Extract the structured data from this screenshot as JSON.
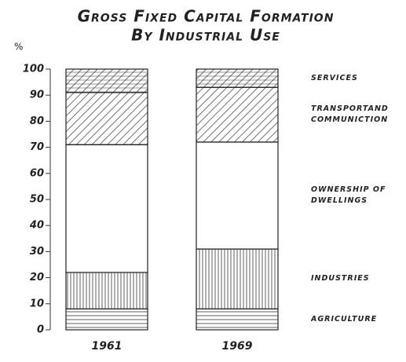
{
  "chart_data": {
    "type": "stacked-bar",
    "title": [
      "Gross Fixed Capital Formation",
      "By Industrial Use"
    ],
    "y_label": "%",
    "categories": [
      "1961",
      "1969"
    ],
    "series": [
      {
        "name": "AGRICULTURE",
        "color": "#222",
        "pattern": "horizontal",
        "values": [
          8,
          8
        ]
      },
      {
        "name": "INDUSTRIES",
        "color": "#222",
        "pattern": "vertical",
        "values": [
          14,
          23
        ]
      },
      {
        "name": "OWNERSHIP OF DWELLINGS",
        "color": "#222",
        "pattern": "none",
        "values": [
          49,
          41
        ]
      },
      {
        "name": "TRANSPORTAND COMMUNICTION",
        "color": "#222",
        "pattern": "diagonal",
        "values": [
          20,
          21
        ]
      },
      {
        "name": "SERVICES",
        "color": "#222",
        "pattern": "diagonal-horizontal",
        "values": [
          9,
          7
        ]
      }
    ],
    "ylim": [
      0,
      100
    ],
    "yticks": [
      0,
      10,
      20,
      30,
      40,
      50,
      60,
      70,
      80,
      90,
      100
    ]
  }
}
